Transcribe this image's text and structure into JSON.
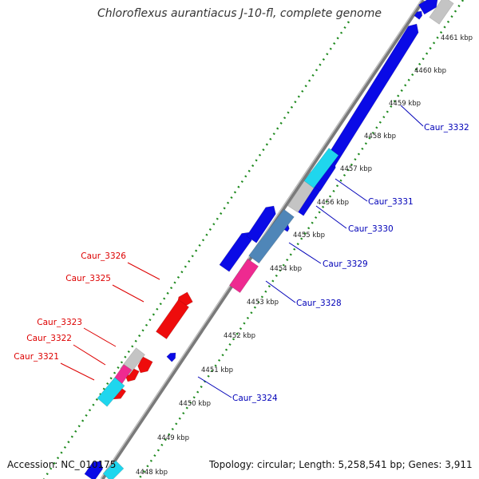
{
  "title": "Chloroflexus aurantiacus J-10-fl, complete genome",
  "footer": {
    "accession": "Accession: NC_010175",
    "summary": "Topology: circular; Length: 5,258,541 bp; Genes: 3,911"
  },
  "colors": {
    "forward_label": "#0000b8",
    "reverse_label": "#dd0000",
    "backbone": "#8c8c8c",
    "ruler": "#1f8a1f"
  },
  "ticks": [
    "4448 kbp",
    "4449 kbp",
    "4450 kbp",
    "4451 kbp",
    "4452 kbp",
    "4453 kbp",
    "4454 kbp",
    "4455 kbp",
    "4456 kbp",
    "4457 kbp",
    "4458 kbp",
    "4459 kbp",
    "4460 kbp",
    "4461 kbp"
  ],
  "gene_labels": [
    {
      "text": "Caur_3332",
      "strand": "forward"
    },
    {
      "text": "Caur_3331",
      "strand": "forward"
    },
    {
      "text": "Caur_3330",
      "strand": "forward"
    },
    {
      "text": "Caur_3329",
      "strand": "forward"
    },
    {
      "text": "Caur_3328",
      "strand": "forward"
    },
    {
      "text": "Caur_3324",
      "strand": "forward"
    },
    {
      "text": "Caur_3326",
      "strand": "reverse"
    },
    {
      "text": "Caur_3325",
      "strand": "reverse"
    },
    {
      "text": "Caur_3323",
      "strand": "reverse"
    },
    {
      "text": "Caur_3322",
      "strand": "reverse"
    },
    {
      "text": "Caur_3321",
      "strand": "reverse"
    }
  ],
  "gene_colors": {
    "blue": "#0a0ae6",
    "cyan": "#1fd6ee",
    "gray": "#c4c4c4",
    "steel": "#4f86b8",
    "magenta": "#ee2a90",
    "red": "#ee0c0c"
  }
}
